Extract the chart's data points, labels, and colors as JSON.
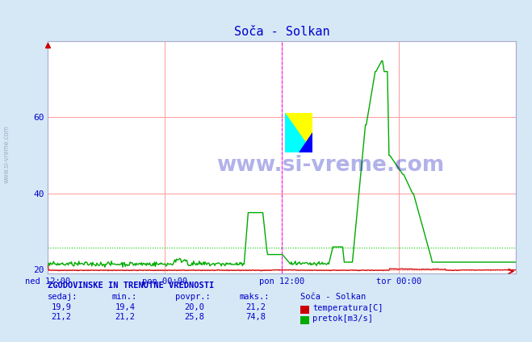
{
  "title": "Soča - Solkan",
  "title_color": "#0000cc",
  "bg_color": "#d6e8f5",
  "plot_bg_color": "#ffffff",
  "grid_color": "#ff9999",
  "x_tick_labels": [
    "ned 12:00",
    "pon 00:00",
    "pon 12:00",
    "tor 00:00"
  ],
  "x_tick_positions": [
    0.0,
    0.25,
    0.5,
    0.75
  ],
  "y_min": 19,
  "y_max": 80,
  "y_ticks": [
    20,
    40,
    60
  ],
  "temp_color": "#cc0000",
  "flow_color": "#00aa00",
  "temp_min": 19.4,
  "temp_max": 21.2,
  "temp_avg": 20.0,
  "temp_current": 19.9,
  "flow_min": 21.2,
  "flow_max": 74.8,
  "flow_avg": 25.8,
  "flow_current": 21.2,
  "watermark": "www.si-vreme.com",
  "watermark_color": "#0000bb",
  "label_color": "#0000cc",
  "vline_color": "#ff00ff",
  "hline_temp_color": "#ff9999",
  "hline_flow_color": "#00cc00",
  "n_points": 576
}
